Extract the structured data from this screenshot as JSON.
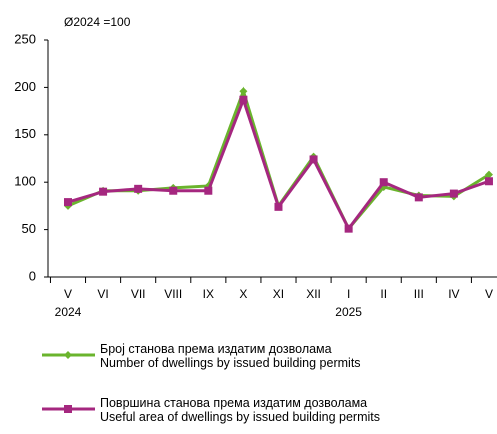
{
  "chart_data": {
    "type": "line",
    "annotation": "Ø2024 =100",
    "categories": [
      "V",
      "VI",
      "VII",
      "VIII",
      "IX",
      "X",
      "XI",
      "XII",
      "I",
      "II",
      "III",
      "IV",
      "V"
    ],
    "year_labels": [
      "2024",
      null,
      null,
      null,
      null,
      null,
      null,
      null,
      "2025",
      null,
      null,
      null,
      null
    ],
    "series": [
      {
        "name": "Број станова према издатим дозволама\nNumber of dwellings by issued building permits",
        "color": "#6ab42d",
        "marker": "diamond",
        "values": [
          75,
          91,
          91,
          94,
          96,
          196,
          75,
          127,
          51,
          95,
          86,
          85,
          108
        ]
      },
      {
        "name": "Површина станова према издатим дозволама\nUseful area of dwellings by issued building permits",
        "color": "#a5277f",
        "marker": "square",
        "values": [
          79,
          90,
          93,
          91,
          91,
          187,
          74,
          124,
          51,
          100,
          84,
          88,
          101
        ]
      }
    ],
    "ylim": [
      0,
      250
    ],
    "yticks": [
      0,
      50,
      100,
      150,
      200,
      250
    ],
    "grid": false
  }
}
